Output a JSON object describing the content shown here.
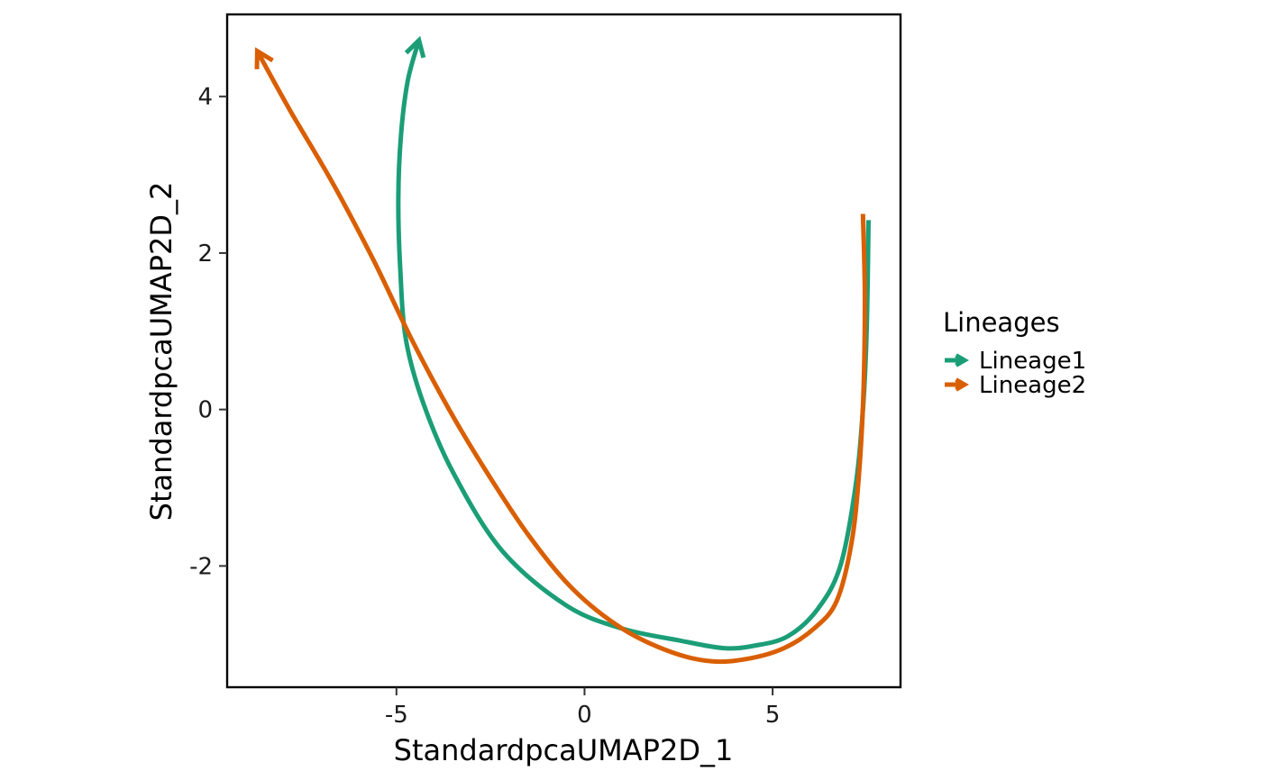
{
  "chart_data": {
    "type": "line",
    "title": "",
    "xlabel": "StandardpcaUMAP2D_1",
    "ylabel": "StandardpcaUMAP2D_2",
    "xlim": [
      -9.5,
      8.4
    ],
    "ylim": [
      -3.55,
      5.05
    ],
    "x_ticks": [
      -5,
      0,
      5
    ],
    "y_ticks": [
      -2,
      0,
      2,
      4
    ],
    "x_tick_labels": [
      "-5",
      "0",
      "5"
    ],
    "y_tick_labels": [
      "-2",
      "0",
      "2",
      "4"
    ],
    "grid": false,
    "legend": {
      "title": "Lineages",
      "placement": "right"
    },
    "series": [
      {
        "name": "Lineage1",
        "color": "#1B9E77",
        "arrow_end": true,
        "x": [
          7.55,
          7.5,
          7.4,
          7.2,
          6.8,
          6.2,
          5.4,
          4.5,
          3.7,
          2.5,
          1.0,
          -0.5,
          -2.2,
          -3.5,
          -4.3,
          -4.75,
          -4.9,
          -4.95,
          -4.88,
          -4.7,
          -4.4
        ],
        "y": [
          2.42,
          1.0,
          0.0,
          -1.0,
          -2.0,
          -2.55,
          -2.9,
          -3.02,
          -3.05,
          -2.95,
          -2.8,
          -2.5,
          -1.8,
          -0.8,
          0.1,
          0.9,
          1.8,
          2.7,
          3.5,
          4.2,
          4.72
        ]
      },
      {
        "name": "Lineage2",
        "color": "#D95F02",
        "arrow_end": true,
        "x": [
          7.4,
          7.45,
          7.42,
          7.3,
          7.1,
          6.7,
          6.1,
          5.3,
          4.4,
          3.4,
          2.3,
          1.0,
          -0.3,
          -1.5,
          -2.6,
          -3.6,
          -4.6,
          -5.6,
          -6.7,
          -7.8,
          -8.7
        ],
        "y": [
          2.5,
          1.5,
          0.3,
          -0.8,
          -1.7,
          -2.45,
          -2.8,
          -3.05,
          -3.18,
          -3.22,
          -3.1,
          -2.8,
          -2.3,
          -1.6,
          -0.8,
          0.0,
          0.9,
          1.9,
          2.9,
          3.8,
          4.58
        ]
      }
    ]
  }
}
